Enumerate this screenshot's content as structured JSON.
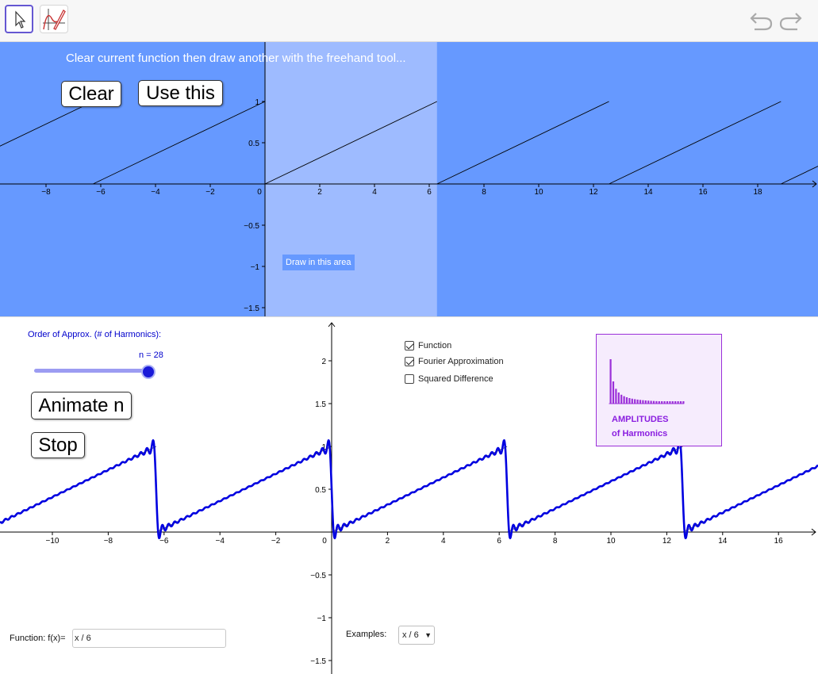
{
  "toolbar": {
    "tools": [
      {
        "name": "move",
        "icon": "pointer-arrow-icon",
        "selected": true
      },
      {
        "name": "freehand",
        "icon": "freehand-pen-icon",
        "selected": false
      }
    ],
    "undo_icon": "undo-icon",
    "redo_icon": "redo-icon"
  },
  "top_view": {
    "instruction": "Clear current function then draw another with the freehand tool...",
    "clear_label": "Clear",
    "use_label": "Use this",
    "draw_area_label": "Draw in this area",
    "background_color": "#6699ff",
    "draw_area_color": "#9ebbff",
    "x_ticks": [
      "−8",
      "−6",
      "−4",
      "−2",
      "0",
      "2",
      "4",
      "6",
      "8",
      "10",
      "12",
      "14",
      "16",
      "18"
    ],
    "y_ticks": [
      "1",
      "0.5",
      "−0.5",
      "−1",
      "−1.5"
    ]
  },
  "bottom_view": {
    "slider_title": "Order of Approx. (# of Harmonics):",
    "slider_value_label": "n = 28",
    "slider_value": 28,
    "animate_label": "Animate n",
    "stop_label": "Stop",
    "checkboxes": [
      {
        "label": "Function",
        "checked": true
      },
      {
        "label": "Fourier Approximation",
        "checked": true
      },
      {
        "label": "Squared Difference",
        "checked": false
      }
    ],
    "amplitudes_line1": "AMPLITUDES",
    "amplitudes_line2": "of Harmonics",
    "function_label": "Function: f(x)=",
    "function_value": "x / 6",
    "examples_label": "Examples:",
    "examples_selected": "x / 6",
    "curve_color": "#0000e0",
    "x_ticks": [
      "−10",
      "−8",
      "−6",
      "−4",
      "−2",
      "0",
      "2",
      "4",
      "6",
      "8",
      "10",
      "12",
      "14",
      "16"
    ],
    "y_ticks": [
      "2",
      "1.5",
      "1",
      "0.5",
      "−0.5",
      "−1",
      "−1.5"
    ]
  }
}
